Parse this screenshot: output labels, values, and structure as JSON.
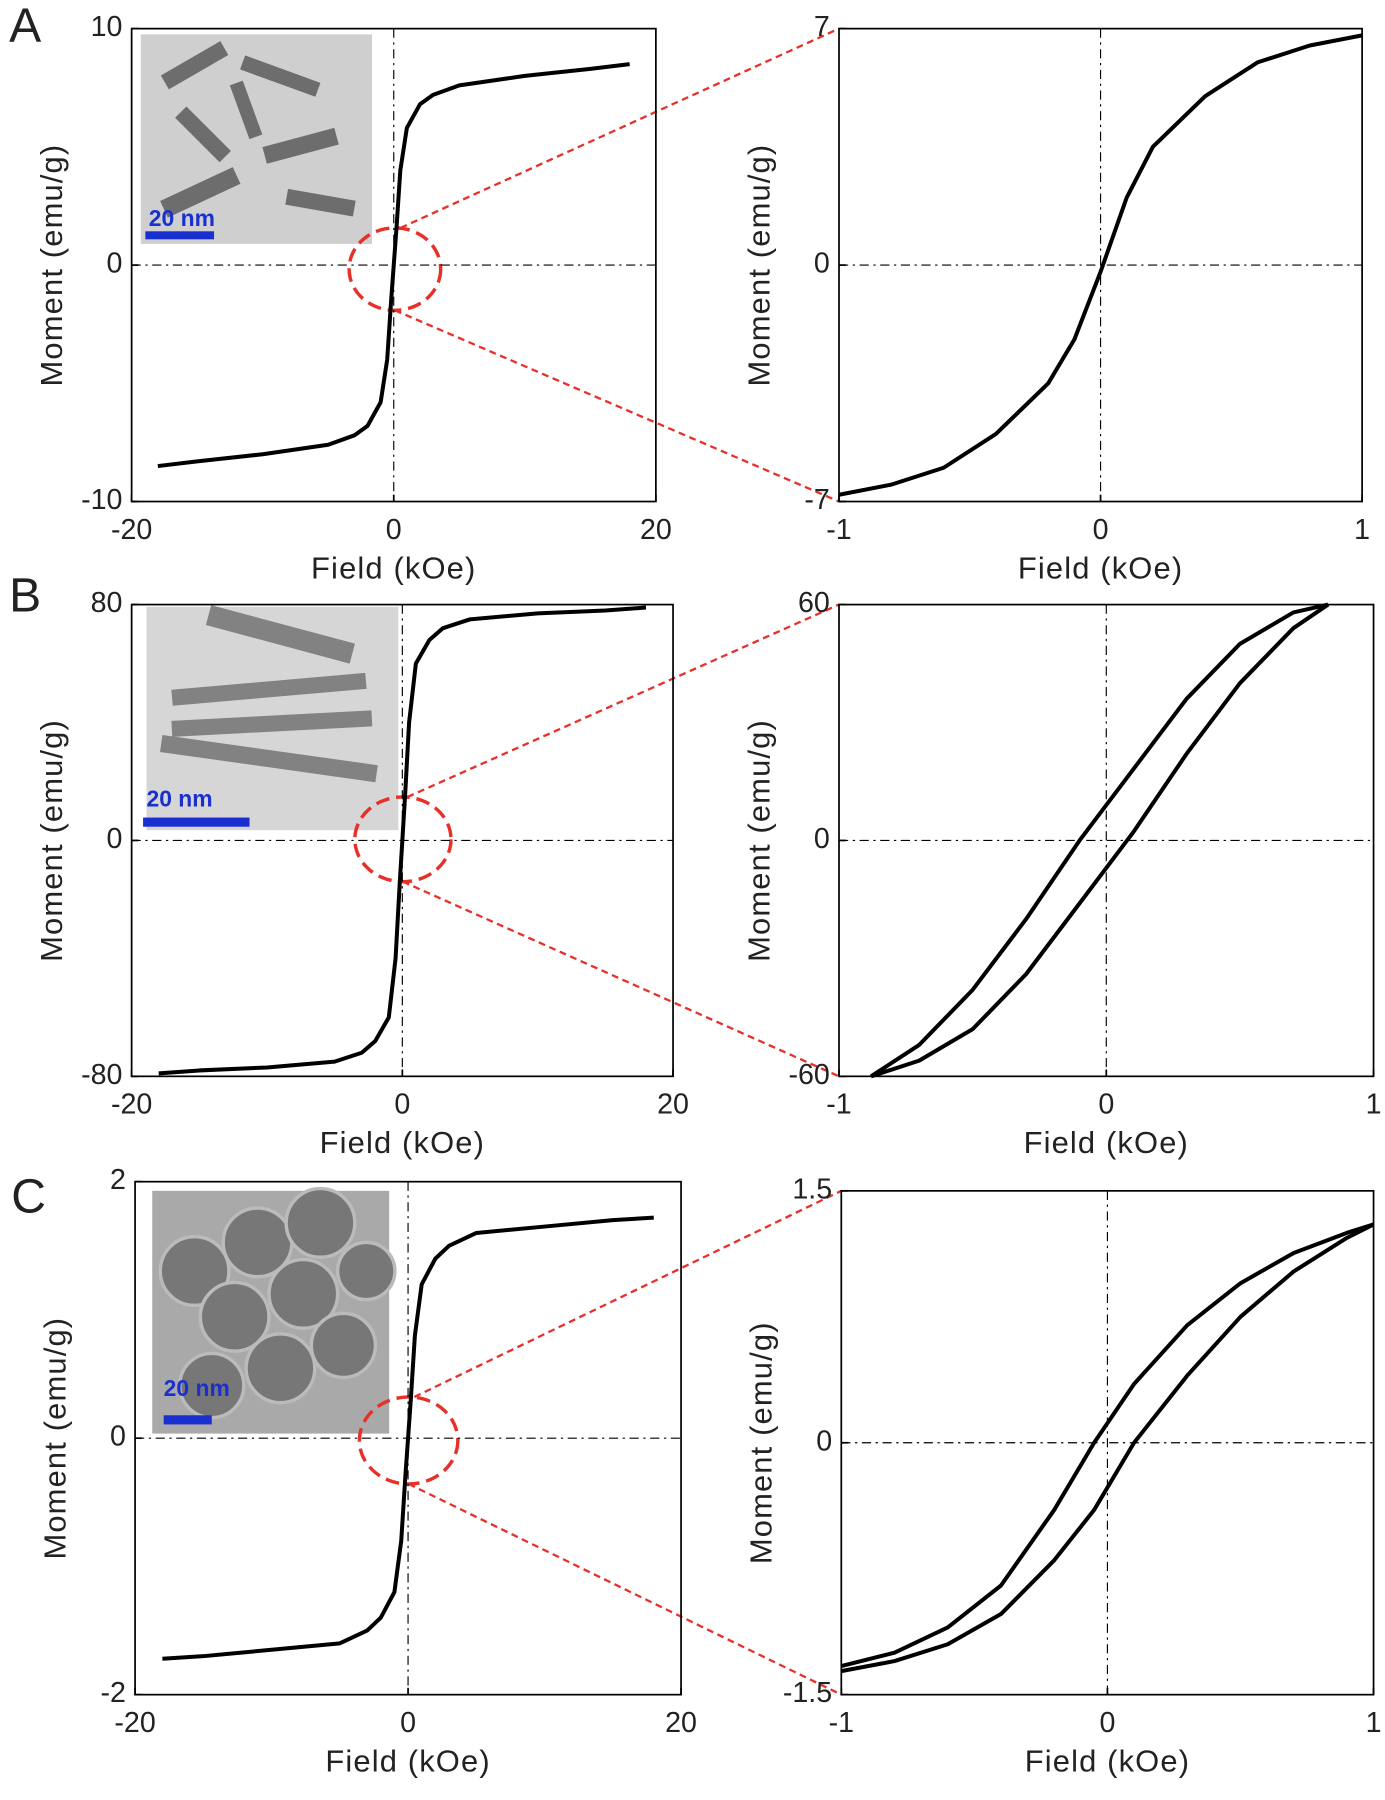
{
  "chart_data": [
    {
      "type": "line",
      "panel": "A",
      "xlabel": "Field (kOe)",
      "ylabel": "Moment (emu/g)",
      "inset_label": "20 nm",
      "x": [
        -18,
        -15,
        -10,
        -5,
        -3,
        -2,
        -1,
        -0.5,
        -0.2,
        0,
        0.2,
        0.5,
        1,
        2,
        3,
        5,
        10,
        15,
        18
      ],
      "series": [
        {
          "color": "#000000",
          "values": [
            -8.5,
            -8.3,
            -8.0,
            -7.6,
            -7.2,
            -6.8,
            -5.8,
            -4.0,
            -1.5,
            0,
            1.5,
            4.0,
            5.8,
            6.8,
            7.2,
            7.6,
            8.0,
            8.3,
            8.5
          ]
        }
      ],
      "xlim": [
        -20,
        20
      ],
      "ylim": [
        -10,
        10
      ],
      "xticks": [
        -20,
        0,
        20
      ],
      "yticks": [
        -10,
        0,
        10
      ],
      "zero_lines": true
    },
    {
      "type": "line",
      "xlabel": "Field (kOe)",
      "ylabel": "Moment (emu/g)",
      "x": [
        -1,
        -0.8,
        -0.6,
        -0.4,
        -0.2,
        -0.1,
        0,
        0.1,
        0.2,
        0.4,
        0.6,
        0.8,
        1
      ],
      "series": [
        {
          "color": "#000000",
          "values": [
            -6.8,
            -6.5,
            -6.0,
            -5.0,
            -3.5,
            -2.2,
            -0.2,
            2.0,
            3.5,
            5.0,
            6.0,
            6.5,
            6.8
          ]
        }
      ],
      "xlim": [
        -1,
        1
      ],
      "ylim": [
        -7,
        7
      ],
      "xticks": [
        -1,
        0,
        1
      ],
      "yticks": [
        -7,
        0,
        7
      ],
      "zero_lines": true
    },
    {
      "type": "line",
      "panel": "B",
      "xlabel": "Field (kOe)",
      "ylabel": "Moment (emu/g)",
      "inset_label": "20 nm",
      "x": [
        -18,
        -15,
        -10,
        -5,
        -3,
        -2,
        -1,
        -0.5,
        -0.2,
        0,
        0.2,
        0.5,
        1,
        2,
        3,
        5,
        10,
        15,
        18
      ],
      "series": [
        {
          "color": "#000000",
          "values": [
            -79,
            -78,
            -77,
            -75,
            -72,
            -68,
            -60,
            -40,
            -15,
            0,
            15,
            40,
            60,
            68,
            72,
            75,
            77,
            78,
            79
          ]
        }
      ],
      "xlim": [
        -20,
        20
      ],
      "ylim": [
        -80,
        80
      ],
      "xticks": [
        -20,
        0,
        20
      ],
      "yticks": [
        -80,
        0,
        80
      ],
      "zero_lines": true
    },
    {
      "type": "line",
      "xlabel": "Field (kOe)",
      "ylabel": "Moment (emu/g)",
      "x": [
        -0.88,
        -0.7,
        -0.5,
        -0.3,
        -0.1,
        0.1,
        0.3,
        0.5,
        0.7,
        0.83
      ],
      "series": [
        {
          "color": "#000000",
          "values": [
            -60,
            -52,
            -38,
            -20,
            0,
            18,
            36,
            50,
            58,
            60
          ]
        },
        {
          "color": "#000000",
          "values": [
            -60,
            -56,
            -48,
            -34,
            -16,
            2,
            22,
            40,
            54,
            60
          ]
        }
      ],
      "xlim": [
        -1,
        1
      ],
      "ylim": [
        -60,
        60
      ],
      "xticks": [
        -1,
        0,
        1
      ],
      "yticks": [
        -60,
        0,
        60
      ],
      "zero_lines": true
    },
    {
      "type": "line",
      "panel": "C",
      "xlabel": "Field (kOe)",
      "ylabel": "Moment (emu/g)",
      "inset_label": "20 nm",
      "x": [
        -18,
        -15,
        -10,
        -5,
        -3,
        -2,
        -1,
        -0.5,
        -0.2,
        0,
        0.2,
        0.5,
        1,
        2,
        3,
        5,
        10,
        15,
        18
      ],
      "series": [
        {
          "color": "#000000",
          "values": [
            -1.72,
            -1.7,
            -1.65,
            -1.6,
            -1.5,
            -1.4,
            -1.2,
            -0.8,
            -0.3,
            0,
            0.3,
            0.8,
            1.2,
            1.4,
            1.5,
            1.6,
            1.65,
            1.7,
            1.72
          ]
        }
      ],
      "xlim": [
        -20,
        20
      ],
      "ylim": [
        -2,
        2
      ],
      "xticks": [
        -20,
        0,
        20
      ],
      "yticks": [
        -2,
        0,
        2
      ],
      "zero_lines": true
    },
    {
      "type": "line",
      "xlabel": "Field (kOe)",
      "ylabel": "Moment (emu/g)",
      "x": [
        -1,
        -0.8,
        -0.6,
        -0.4,
        -0.2,
        -0.05,
        0.1,
        0.3,
        0.5,
        0.7,
        0.9,
        1
      ],
      "series": [
        {
          "color": "#000000",
          "values": [
            -1.33,
            -1.25,
            -1.1,
            -0.85,
            -0.4,
            0,
            0.35,
            0.7,
            0.95,
            1.13,
            1.25,
            1.3
          ]
        },
        {
          "color": "#000000",
          "values": [
            -1.36,
            -1.3,
            -1.2,
            -1.02,
            -0.7,
            -0.4,
            0,
            0.4,
            0.75,
            1.02,
            1.22,
            1.3
          ]
        }
      ],
      "xlim": [
        -1,
        1
      ],
      "ylim": [
        -1.5,
        1.5
      ],
      "xticks": [
        -1,
        0,
        1
      ],
      "yticks": [
        -1.5,
        0,
        1.5
      ],
      "zero_lines": true
    }
  ]
}
